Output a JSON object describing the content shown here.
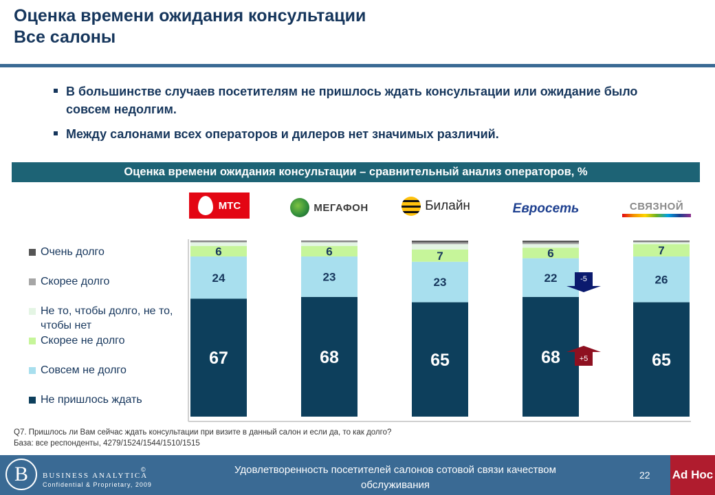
{
  "slide": {
    "title_line1": "Оценка времени ожидания консультации",
    "title_line2": "Все салоны",
    "bullets": [
      "В большинстве случаев посетителям не пришлось ждать консультации или ожидание было совсем недолгим.",
      "Между салонами всех операторов и дилеров нет значимых различий."
    ],
    "footnote_question": "Q7. Пришлось ли Вам сейчас ждать консультации при визите в данный салон и если да, то как долго?",
    "footnote_base": "База: все респонденты, 4279/1524/1544/1510/1515"
  },
  "logos": {
    "mts": "МТС",
    "megafon": "МЕГАФОН",
    "beeline": "Билайн",
    "evroset": "Евросеть",
    "svyaznoy": "СВЯЗНОЙ"
  },
  "chart_data": {
    "type": "bar",
    "stacked": true,
    "title": "Оценка времени ожидания консультации – сравнительный анализ операторов, %",
    "categories": [
      "МТС",
      "МегаФон",
      "Билайн",
      "Евросеть",
      "Связной"
    ],
    "ylim": [
      0,
      100
    ],
    "legend_position": "left",
    "series": [
      {
        "name": "Не пришлось ждать",
        "color": "#0d3f5c",
        "values": [
          67,
          68,
          65,
          68,
          65
        ],
        "labels": [
          "67",
          "68",
          "65",
          "68",
          "65"
        ]
      },
      {
        "name": "Совсем не долго",
        "color": "#a8dfee",
        "values": [
          24,
          23,
          23,
          22,
          26
        ],
        "labels": [
          "24",
          "23",
          "23",
          "22",
          "26"
        ]
      },
      {
        "name": "Скорее не долго",
        "color": "#c6f59a",
        "values": [
          6,
          6,
          7,
          6,
          7
        ],
        "labels": [
          "6",
          "6",
          "7",
          "6",
          "7"
        ]
      },
      {
        "name": "Не то, чтобы долго, не то, чтобы нет",
        "color": "#e4f5e4",
        "values": [
          2,
          2,
          3,
          2,
          1
        ],
        "labels": [
          "",
          "",
          "",
          "",
          ""
        ]
      },
      {
        "name": "Скорее долго",
        "color": "#a6a6a6",
        "values": [
          0.6,
          0.6,
          1,
          1,
          0.5
        ],
        "labels": [
          "",
          "",
          "",
          "",
          ""
        ]
      },
      {
        "name": "Очень долго",
        "color": "#555555",
        "values": [
          0.4,
          0.4,
          1,
          1,
          0.5
        ],
        "labels": [
          "",
          "",
          "",
          "",
          ""
        ]
      }
    ],
    "annotations": [
      {
        "category": "Евросеть",
        "series": "Совсем не долго",
        "text": "-5",
        "direction": "down",
        "color": "#0b1a6e"
      },
      {
        "category": "Евросеть",
        "series": "Не пришлось ждать",
        "text": "+5",
        "direction": "up",
        "color": "#8e1020"
      }
    ]
  },
  "footer": {
    "brand": "BUSINESS ANALYTICA",
    "subtitle": "Confidential & Proprietary, 2009",
    "copyright": "©",
    "caption": "Удовлетворенность посетителей салонов сотовой связи качеством обслуживания",
    "page": "22",
    "adhoc": "Ad Hoc"
  }
}
